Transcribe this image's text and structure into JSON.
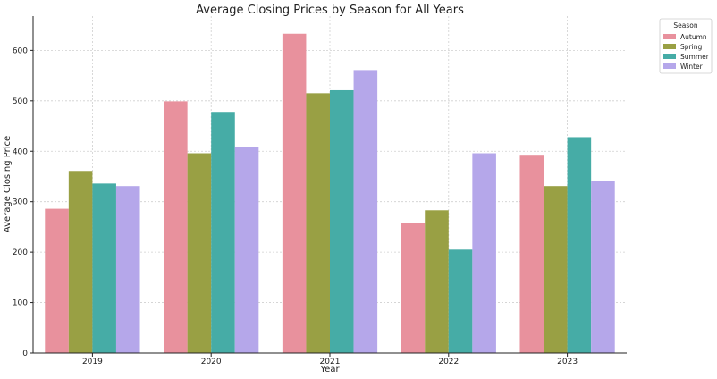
{
  "chart_data": {
    "type": "bar",
    "title": "Average Closing Prices by Season for All Years",
    "xlabel": "Year",
    "ylabel": "Average Closing Price",
    "categories": [
      "2019",
      "2020",
      "2021",
      "2022",
      "2023"
    ],
    "ylim": [
      0,
      668
    ],
    "yticks": [
      0,
      100,
      200,
      300,
      400,
      500,
      600
    ],
    "grid": true,
    "legend": {
      "title": "Season",
      "placement": "outside-top-right"
    },
    "series": [
      {
        "name": "Autumn",
        "color": "#e8919d",
        "values": [
          286,
          499,
          633,
          257,
          393
        ]
      },
      {
        "name": "Spring",
        "color": "#99a044",
        "values": [
          361,
          396,
          515,
          283,
          331
        ]
      },
      {
        "name": "Summer",
        "color": "#46aca6",
        "values": [
          336,
          478,
          521,
          205,
          428
        ]
      },
      {
        "name": "Winter",
        "color": "#b5a7ea",
        "values": [
          331,
          409,
          561,
          396,
          341
        ]
      }
    ]
  }
}
